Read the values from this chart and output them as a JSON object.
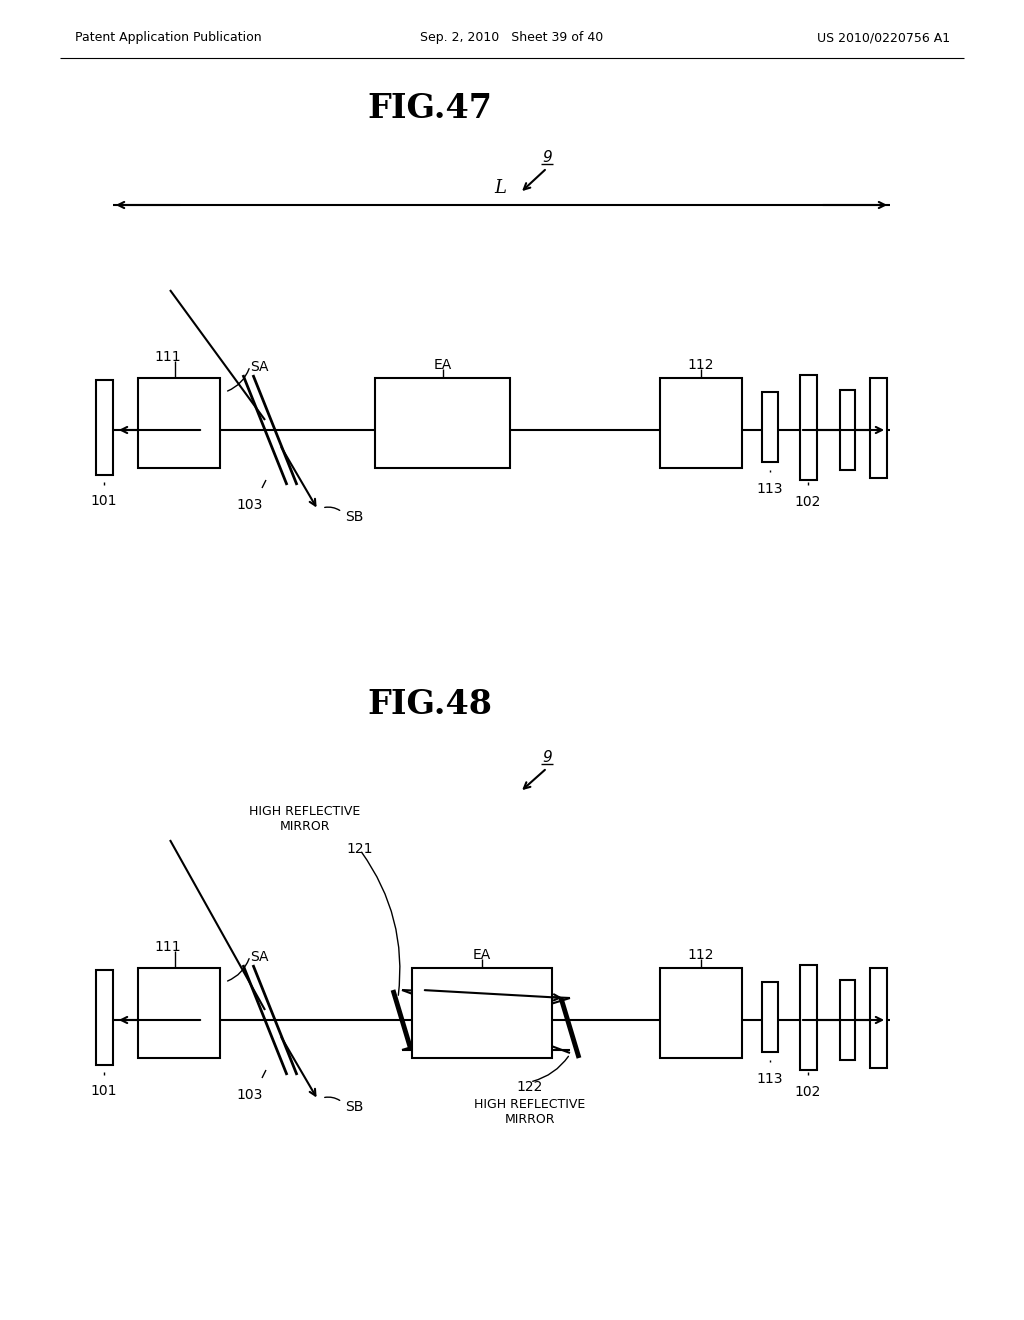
{
  "header_left": "Patent Application Publication",
  "header_mid": "Sep. 2, 2010   Sheet 39 of 40",
  "header_right": "US 2010/0220756 A1",
  "bg_color": "#ffffff",
  "fig47_title": "FIG.47",
  "fig48_title": "FIG.48",
  "labels": {
    "9": "9",
    "L": "L",
    "101": "101",
    "102": "102",
    "103": "103",
    "111": "111",
    "112": "112",
    "113": "113",
    "121": "121",
    "122": "122",
    "SA": "SA",
    "SB": "SB",
    "EA": "EA",
    "hrm": "HIGH REFLECTIVE\nMIRROR"
  }
}
